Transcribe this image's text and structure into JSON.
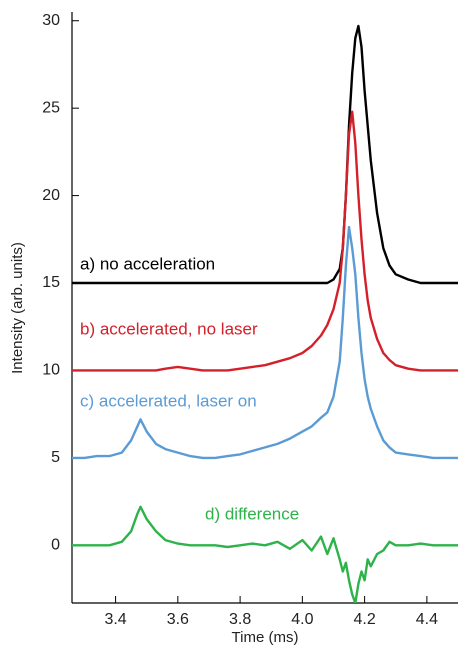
{
  "chart_data": {
    "type": "line",
    "x_label": "Time (ms)",
    "y_label": "Intensity (arb. units)",
    "x": [
      3.26,
      3.3,
      3.34,
      3.38,
      3.42,
      3.45,
      3.47,
      3.48,
      3.5,
      3.53,
      3.56,
      3.6,
      3.64,
      3.68,
      3.72,
      3.76,
      3.8,
      3.84,
      3.88,
      3.92,
      3.96,
      4.0,
      4.03,
      4.06,
      4.08,
      4.1,
      4.12,
      4.13,
      4.14,
      4.15,
      4.16,
      4.17,
      4.18,
      4.19,
      4.2,
      4.21,
      4.22,
      4.24,
      4.26,
      4.28,
      4.3,
      4.34,
      4.38,
      4.42,
      4.46,
      4.5
    ],
    "series": [
      {
        "name": "a) no acceleration",
        "color": "#000000",
        "values": [
          15,
          15,
          15,
          15,
          15,
          15,
          15,
          15,
          15,
          15,
          15,
          15,
          15,
          15,
          15,
          15,
          15,
          15,
          15,
          15,
          15,
          15,
          15,
          15,
          15,
          15.2,
          15.8,
          17,
          20,
          24,
          27,
          29,
          29.7,
          28.5,
          26,
          24,
          22,
          19,
          17,
          16,
          15.5,
          15.2,
          15,
          15,
          15,
          15
        ]
      },
      {
        "name": "b) accelerated, no laser",
        "color": "#d4202a",
        "values": [
          10,
          10,
          10,
          10,
          10,
          10,
          10,
          10,
          10,
          10,
          10.1,
          10.2,
          10.1,
          10,
          10,
          10,
          10.1,
          10.2,
          10.3,
          10.5,
          10.7,
          11,
          11.4,
          12,
          12.6,
          13.5,
          15,
          17,
          20,
          23.5,
          24.8,
          23,
          20,
          17.5,
          15.5,
          14,
          13,
          11.8,
          11,
          10.6,
          10.3,
          10.1,
          10,
          10,
          10,
          10
        ]
      },
      {
        "name": "c) accelerated, laser on",
        "color": "#5b9bd5",
        "values": [
          5,
          5,
          5.1,
          5.1,
          5.3,
          6,
          6.8,
          7.2,
          6.5,
          5.8,
          5.5,
          5.3,
          5.1,
          5,
          5,
          5.1,
          5.2,
          5.4,
          5.6,
          5.8,
          6.1,
          6.5,
          6.8,
          7.3,
          7.6,
          8.5,
          10.5,
          13,
          16,
          18.2,
          17,
          15.5,
          13,
          11,
          9.5,
          8.5,
          7.8,
          6.8,
          6,
          5.6,
          5.3,
          5.2,
          5.1,
          5,
          5,
          5
        ]
      },
      {
        "name": "d) difference",
        "color": "#2db34a",
        "values": [
          0,
          0,
          0,
          0,
          0.2,
          0.8,
          1.8,
          2.2,
          1.5,
          0.8,
          0.3,
          0.1,
          0,
          0,
          0,
          -0.1,
          0,
          0.1,
          0,
          0.2,
          -0.2,
          0.3,
          -0.3,
          0.5,
          -0.5,
          0.4,
          -0.8,
          -1.5,
          -1,
          -2,
          -2.8,
          -3.3,
          -2.2,
          -1.5,
          -2,
          -0.8,
          -1.2,
          -0.5,
          -0.3,
          0.2,
          0,
          0,
          0.1,
          0,
          0,
          0
        ]
      }
    ],
    "xlim": [
      3.26,
      4.5
    ],
    "ylim": [
      -3.3,
      30.5
    ],
    "xticks": [
      3.4,
      3.6,
      3.8,
      {
        "value": 4,
        "label": "4.0"
      },
      4.2,
      4.4
    ],
    "yticks": [
      0,
      5,
      10,
      15,
      20,
      25,
      30
    ]
  }
}
